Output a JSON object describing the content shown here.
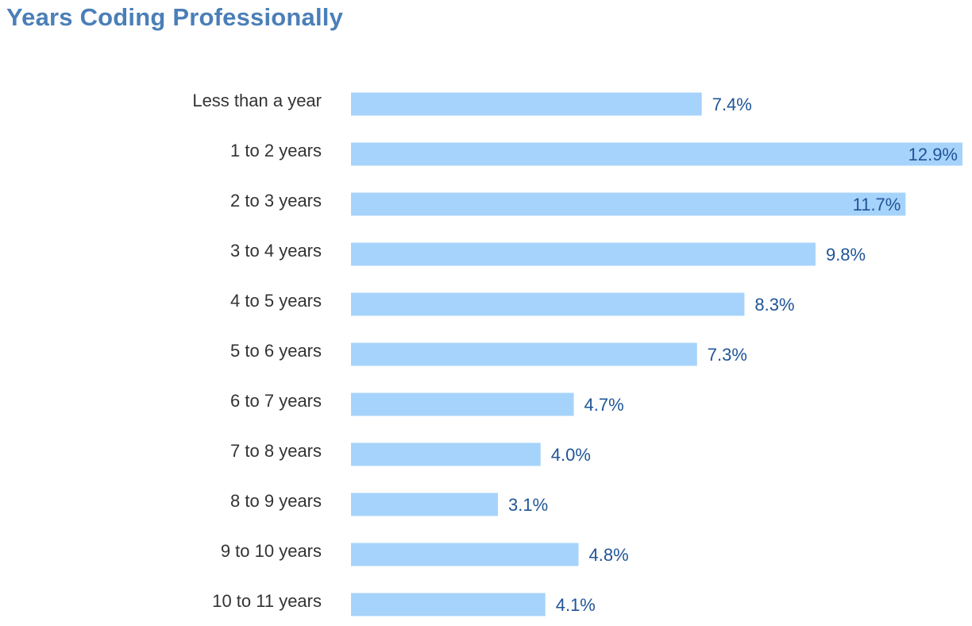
{
  "chart_data": {
    "type": "bar",
    "orientation": "horizontal",
    "title": "Years Coding Professionally",
    "categories": [
      "Less than a year",
      "1 to 2 years",
      "2 to 3 years",
      "3 to 4 years",
      "4 to 5 years",
      "5 to 6 years",
      "6 to 7 years",
      "7 to 8 years",
      "8 to 9 years",
      "9 to 10 years",
      "10 to 11 years"
    ],
    "values": [
      7.4,
      12.9,
      11.7,
      9.8,
      8.3,
      7.3,
      4.7,
      4.0,
      3.1,
      4.8,
      4.1
    ],
    "value_labels": [
      "7.4%",
      "12.9%",
      "11.7%",
      "9.8%",
      "8.3%",
      "7.3%",
      "4.7%",
      "4.0%",
      "3.1%",
      "4.8%",
      "4.1%"
    ],
    "xlim": [
      0,
      12.9
    ],
    "grid": false,
    "legend": "none",
    "colors": {
      "bar": "#a6d3fb",
      "value_label": "#1f5597",
      "category_label": "#333333",
      "title": "#4a7fb8"
    }
  }
}
